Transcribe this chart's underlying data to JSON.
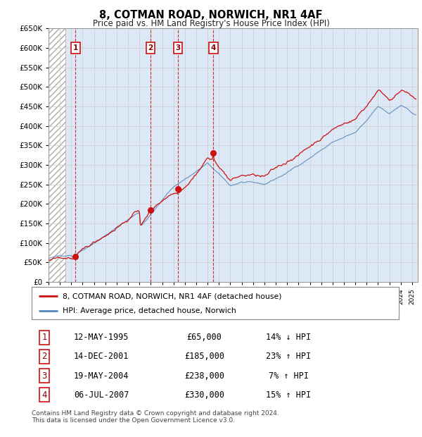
{
  "title": "8, COTMAN ROAD, NORWICH, NR1 4AF",
  "subtitle": "Price paid vs. HM Land Registry's House Price Index (HPI)",
  "ylim": [
    0,
    650000
  ],
  "xlim_start": 1993.0,
  "xlim_end": 2025.5,
  "yticks": [
    0,
    50000,
    100000,
    150000,
    200000,
    250000,
    300000,
    350000,
    400000,
    450000,
    500000,
    550000,
    600000,
    650000
  ],
  "ytick_labels": [
    "£0",
    "£50K",
    "£100K",
    "£150K",
    "£200K",
    "£250K",
    "£300K",
    "£350K",
    "£400K",
    "£450K",
    "£500K",
    "£550K",
    "£600K",
    "£650K"
  ],
  "hpi_color": "#5588bb",
  "price_color": "#cc1111",
  "transactions": [
    {
      "num": 1,
      "year": 1995.37,
      "price": 65000,
      "date": "12-MAY-1995",
      "pct": "14%",
      "dir": "↓"
    },
    {
      "num": 2,
      "year": 2001.96,
      "price": 185000,
      "date": "14-DEC-2001",
      "pct": "23%",
      "dir": "↑"
    },
    {
      "num": 3,
      "year": 2004.38,
      "price": 238000,
      "date": "19-MAY-2004",
      "pct": "7%",
      "dir": "↑"
    },
    {
      "num": 4,
      "year": 2007.51,
      "price": 330000,
      "date": "06-JUL-2007",
      "pct": "15%",
      "dir": "↑"
    }
  ],
  "legend_line1": "8, COTMAN ROAD, NORWICH, NR1 4AF (detached house)",
  "legend_line2": "HPI: Average price, detached house, Norwich",
  "footer": "Contains HM Land Registry data © Crown copyright and database right 2024.\nThis data is licensed under the Open Government Licence v3.0.",
  "background_color": "#ffffff",
  "grid_color": "#cccccc",
  "plot_bg_color": "#dce8f5",
  "hatch_end_year": 1994.5
}
